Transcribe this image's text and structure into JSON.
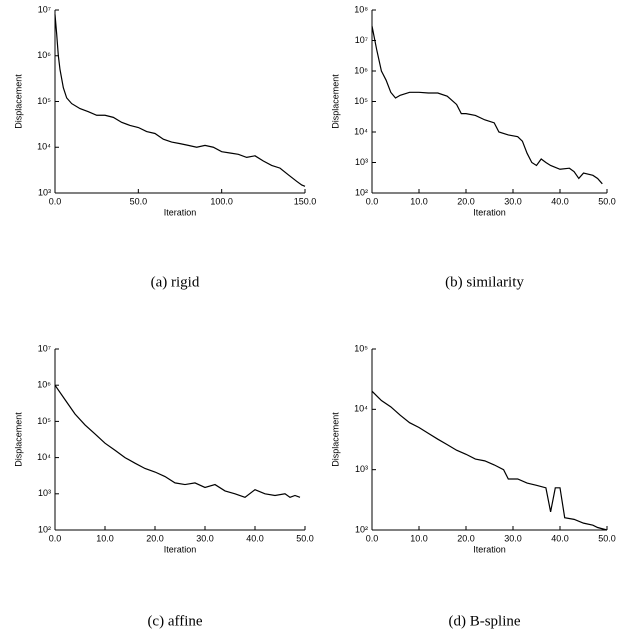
{
  "chart_data": [
    {
      "type": "line",
      "caption": "(a) rigid",
      "xlabel": "Iteration",
      "ylabel": "Displacement",
      "log_y": true,
      "color": "#000000",
      "xlim": [
        0,
        150
      ],
      "ylim": [
        1000,
        10000000
      ],
      "xticks": [
        {
          "value": 0,
          "label": "0.0"
        },
        {
          "value": 50,
          "label": "50.0"
        },
        {
          "value": 100,
          "label": "100.0"
        },
        {
          "value": 150,
          "label": "150.0"
        }
      ],
      "yticks": [
        {
          "value": 1000,
          "label": "10³"
        },
        {
          "value": 10000,
          "label": "10⁴"
        },
        {
          "value": 100000,
          "label": "10⁵"
        },
        {
          "value": 1000000,
          "label": "10⁶"
        },
        {
          "value": 10000000,
          "label": "10⁷"
        }
      ],
      "x": [
        0,
        1,
        2,
        3,
        5,
        7,
        10,
        15,
        20,
        25,
        30,
        35,
        40,
        45,
        50,
        55,
        60,
        65,
        70,
        75,
        80,
        85,
        90,
        95,
        100,
        105,
        110,
        115,
        120,
        125,
        130,
        135,
        140,
        145,
        148,
        150
      ],
      "values": [
        8000000,
        3000000,
        1000000,
        500000,
        200000,
        120000,
        90000,
        70000,
        60000,
        50000,
        50000,
        45000,
        35000,
        30000,
        27000,
        22000,
        20000,
        15000,
        13000,
        12000,
        11000,
        10000,
        11000,
        10000,
        8000,
        7500,
        7000,
        6000,
        6500,
        5000,
        4000,
        3500,
        2500,
        1800,
        1500,
        1400
      ]
    },
    {
      "type": "line",
      "caption": "(b) similarity",
      "xlabel": "Iteration",
      "ylabel": "Displacement",
      "log_y": true,
      "color": "#000000",
      "xlim": [
        0,
        50
      ],
      "ylim": [
        100,
        100000000
      ],
      "xticks": [
        {
          "value": 0,
          "label": "0.0"
        },
        {
          "value": 10,
          "label": "10.0"
        },
        {
          "value": 20,
          "label": "20.0"
        },
        {
          "value": 30,
          "label": "30.0"
        },
        {
          "value": 40,
          "label": "40.0"
        },
        {
          "value": 50,
          "label": "50.0"
        }
      ],
      "yticks": [
        {
          "value": 100,
          "label": "10²"
        },
        {
          "value": 1000,
          "label": "10³"
        },
        {
          "value": 10000,
          "label": "10⁴"
        },
        {
          "value": 100000,
          "label": "10⁵"
        },
        {
          "value": 1000000,
          "label": "10⁶"
        },
        {
          "value": 10000000,
          "label": "10⁷"
        },
        {
          "value": 100000000,
          "label": "10⁸"
        }
      ],
      "x": [
        0,
        1,
        2,
        3,
        4,
        5,
        6,
        8,
        10,
        12,
        14,
        16,
        18,
        19,
        20,
        22,
        24,
        26,
        27,
        29,
        31,
        32,
        33,
        34,
        35,
        36,
        37,
        38,
        40,
        42,
        43,
        44,
        45,
        47,
        48,
        49
      ],
      "values": [
        30000000,
        5000000,
        1000000,
        500000,
        200000,
        130000,
        160000,
        200000,
        200000,
        190000,
        190000,
        150000,
        80000,
        40000,
        40000,
        35000,
        25000,
        20000,
        10000,
        8000,
        7000,
        5000,
        2000,
        1000,
        800,
        1300,
        1000,
        800,
        600,
        650,
        500,
        300,
        450,
        380,
        300,
        200
      ]
    },
    {
      "type": "line",
      "caption": "(c) affine",
      "xlabel": "Iteration",
      "ylabel": "Displacement",
      "log_y": true,
      "color": "#000000",
      "xlim": [
        0,
        50
      ],
      "ylim": [
        100,
        10000000
      ],
      "xticks": [
        {
          "value": 0,
          "label": "0.0"
        },
        {
          "value": 10,
          "label": "10.0"
        },
        {
          "value": 20,
          "label": "20.0"
        },
        {
          "value": 30,
          "label": "30.0"
        },
        {
          "value": 40,
          "label": "40.0"
        },
        {
          "value": 50,
          "label": "50.0"
        }
      ],
      "yticks": [
        {
          "value": 100,
          "label": "10²"
        },
        {
          "value": 1000,
          "label": "10³"
        },
        {
          "value": 10000,
          "label": "10⁴"
        },
        {
          "value": 100000,
          "label": "10⁵"
        },
        {
          "value": 1000000,
          "label": "10⁶"
        },
        {
          "value": 10000000,
          "label": "10⁷"
        }
      ],
      "x": [
        0,
        2,
        4,
        6,
        8,
        10,
        12,
        14,
        16,
        18,
        20,
        22,
        24,
        26,
        28,
        30,
        32,
        34,
        36,
        38,
        40,
        42,
        44,
        46,
        47,
        48,
        49
      ],
      "values": [
        1000000,
        400000,
        160000,
        80000,
        45000,
        25000,
        16000,
        10000,
        7000,
        5000,
        4000,
        3000,
        2000,
        1800,
        2000,
        1500,
        1800,
        1200,
        1000,
        800,
        1300,
        1000,
        900,
        1000,
        800,
        900,
        800
      ]
    },
    {
      "type": "line",
      "caption": "(d) B-spline",
      "xlabel": "Iteration",
      "ylabel": "Displacement",
      "log_y": true,
      "color": "#000000",
      "xlim": [
        0,
        50
      ],
      "ylim": [
        100,
        100000
      ],
      "xticks": [
        {
          "value": 0,
          "label": "0.0"
        },
        {
          "value": 10,
          "label": "10.0"
        },
        {
          "value": 20,
          "label": "20.0"
        },
        {
          "value": 30,
          "label": "30.0"
        },
        {
          "value": 40,
          "label": "40.0"
        },
        {
          "value": 50,
          "label": "50.0"
        }
      ],
      "yticks": [
        {
          "value": 100,
          "label": "10²"
        },
        {
          "value": 1000,
          "label": "10³"
        },
        {
          "value": 10000,
          "label": "10⁴"
        },
        {
          "value": 100000,
          "label": "10⁵"
        }
      ],
      "x": [
        0,
        2,
        4,
        6,
        8,
        10,
        12,
        14,
        16,
        18,
        20,
        22,
        24,
        26,
        28,
        29,
        31,
        33,
        35,
        37,
        38,
        39,
        40,
        41,
        43,
        45,
        47,
        48,
        50
      ],
      "values": [
        20000,
        14000,
        11000,
        8000,
        6000,
        5000,
        4000,
        3200,
        2600,
        2100,
        1800,
        1500,
        1400,
        1200,
        1000,
        700,
        700,
        600,
        550,
        500,
        200,
        500,
        500,
        160,
        150,
        130,
        120,
        110,
        100
      ]
    }
  ]
}
